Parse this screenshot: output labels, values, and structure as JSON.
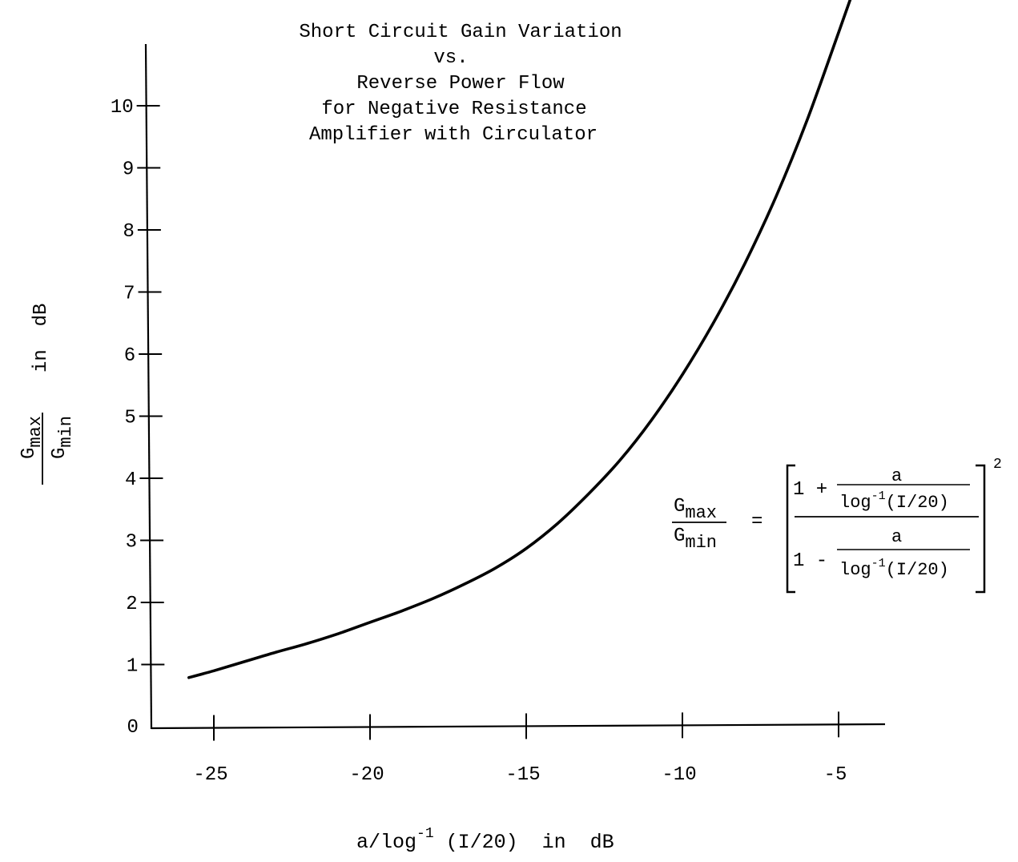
{
  "chart_data": {
    "type": "line",
    "title_lines": [
      "Short Circuit Gain Variation",
      "vs.",
      "Reverse Power Flow",
      "for Negative Resistance",
      "Amplifier with Circulator"
    ],
    "xlabel": {
      "prefix": "a/log",
      "superscript": "-1",
      "suffix": " (I/20)  in  dB"
    },
    "ylabel": {
      "numerator_base": "G",
      "numerator_sub": "max",
      "denominator_base": "G",
      "denominator_sub": "min",
      "unit_text": "in  dB"
    },
    "xlim": [
      -27,
      -3
    ],
    "ylim": [
      0,
      11.5
    ],
    "x_ticks": [
      -25,
      -20,
      -15,
      -10,
      -5
    ],
    "x_tick_labels": [
      "-25",
      "-20",
      "-15",
      "-10",
      "-5"
    ],
    "y_ticks": [
      0,
      1,
      2,
      3,
      4,
      5,
      6,
      7,
      8,
      9,
      10
    ],
    "y_tick_labels": [
      "0",
      "1",
      "2",
      "3",
      "4",
      "5",
      "6",
      "7",
      "8",
      "9",
      "10"
    ],
    "grid": false,
    "series": [
      {
        "x": [
          -25.8,
          -25,
          -24,
          -23,
          -22,
          -21,
          -20,
          -19,
          -18,
          -17,
          -16,
          -15,
          -14,
          -13,
          -12,
          -11,
          -10,
          -9,
          -8,
          -7,
          -6,
          -5,
          -4.6
        ],
        "y": [
          0.79,
          0.9,
          1.05,
          1.2,
          1.34,
          1.5,
          1.68,
          1.86,
          2.06,
          2.29,
          2.55,
          2.87,
          3.27,
          3.75,
          4.29,
          4.93,
          5.67,
          6.51,
          7.46,
          8.54,
          9.78,
          11.18,
          11.75
        ]
      }
    ],
    "formula": {
      "lhs_num_base": "G",
      "lhs_num_sub": "max",
      "lhs_den_base": "G",
      "lhs_den_sub": "min",
      "equals": "=",
      "top_one": "1 +",
      "bottom_one": "1 -",
      "a": "a",
      "log": "log",
      "log_sup": "-1",
      "log_arg": "(I/20)",
      "exponent": "2"
    }
  }
}
